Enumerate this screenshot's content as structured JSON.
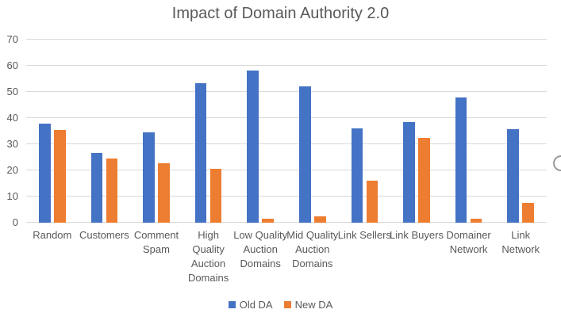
{
  "chart_data": {
    "type": "bar",
    "title": "Impact of Domain Authority 2.0",
    "categories": [
      "Random",
      "Customers",
      "Comment Spam",
      "High Quality Auction Domains",
      "Low Quality Auction Domains",
      "Mid Quality Auction Domains",
      "Link Sellers",
      "Link Buyers",
      "Domainer Network",
      "Link Network"
    ],
    "series": [
      {
        "name": "Old DA",
        "color": "#4472C4",
        "values": [
          37.8,
          26.8,
          34.7,
          53.3,
          58.2,
          52.0,
          36.2,
          38.6,
          48.0,
          35.7
        ]
      },
      {
        "name": "New DA",
        "color": "#ED7D31",
        "values": [
          35.6,
          24.5,
          22.8,
          20.6,
          1.5,
          2.3,
          16.1,
          32.5,
          1.5,
          7.5
        ]
      }
    ],
    "xlabel": "",
    "ylabel": "",
    "ylim": [
      0,
      70
    ],
    "yticks": [
      0,
      10,
      20,
      30,
      40,
      50,
      60,
      70
    ],
    "grid": true,
    "legend_position": "bottom",
    "colors": {
      "gridline": "#D9D9D9",
      "axis_line": "#D9D9D9",
      "text": "#595959",
      "background": "#FFFFFF"
    }
  },
  "decorations": {
    "partial_circle_glyph": {
      "color": "#9B9B9B"
    }
  }
}
